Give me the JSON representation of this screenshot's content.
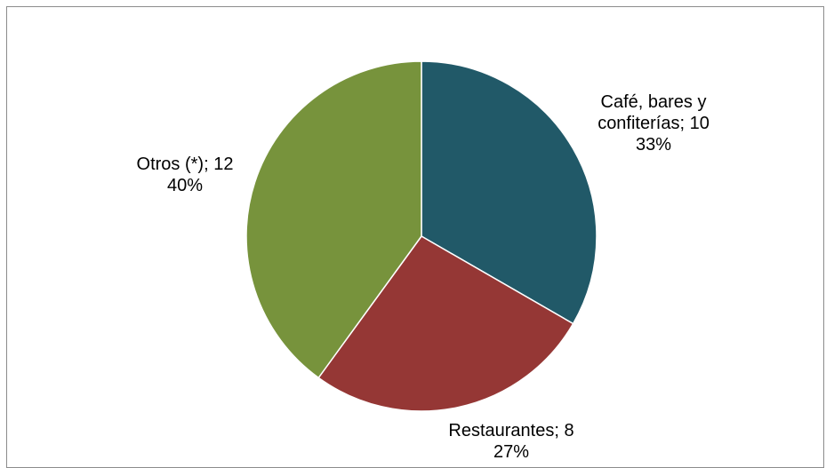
{
  "chart_data": {
    "type": "pie",
    "title": "",
    "slices": [
      {
        "label_lines": [
          "Café, bares y",
          "confiterías; 10"
        ],
        "category": "Café, bares y confiterías",
        "value": 10,
        "percent_label": "33%",
        "color": "#215968"
      },
      {
        "label_lines": [
          "Restaurantes; 8"
        ],
        "category": "Restaurantes",
        "value": 8,
        "percent_label": "27%",
        "color": "#953735"
      },
      {
        "label_lines": [
          "Otros (*); 12"
        ],
        "category": "Otros (*)",
        "value": 12,
        "percent_label": "40%",
        "color": "#77933C"
      }
    ],
    "start_angle": "12 o'clock",
    "direction": "clockwise",
    "legend": "none"
  }
}
